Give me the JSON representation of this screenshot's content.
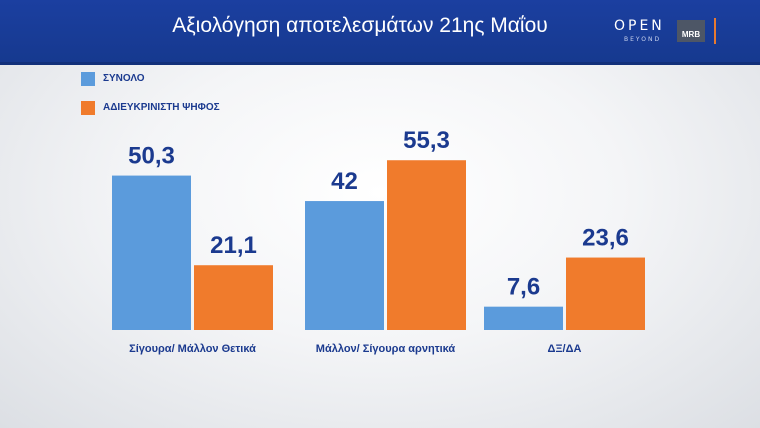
{
  "header": {
    "title": "Αξιολόγηση αποτελεσμάτων 21ης Μαΐου",
    "logo_open": "OPEN",
    "logo_beyond": "BEYOND",
    "logo_mrb": "MRB"
  },
  "colors": {
    "header_bg": "#1b3fa0",
    "series_total": "#5b9bdc",
    "series_blank": "#f07b2c",
    "label_text": "#1b3a8f"
  },
  "chart_data": {
    "type": "bar",
    "categories": [
      "Σίγουρα/ Μάλλον Θετικά",
      "Μάλλον/ Σίγουρα αρνητικά",
      "ΔΞ/ΔΑ"
    ],
    "series": [
      {
        "name": "ΣΥΝΟΛΟ",
        "values": [
          50.3,
          42,
          7.6
        ],
        "labels": [
          "50,3",
          "42",
          "7,6"
        ],
        "color": "#5b9bdc"
      },
      {
        "name": "ΑΔΙΕΥΚΡΙΝΙΣΤΗ ΨΗΦΟΣ",
        "values": [
          21.1,
          55.3,
          23.6
        ],
        "labels": [
          "21,1",
          "55,3",
          "23,6"
        ],
        "color": "#f07b2c"
      }
    ],
    "ylim": [
      0,
      60
    ],
    "grid": false,
    "legend_position": "top-left"
  }
}
